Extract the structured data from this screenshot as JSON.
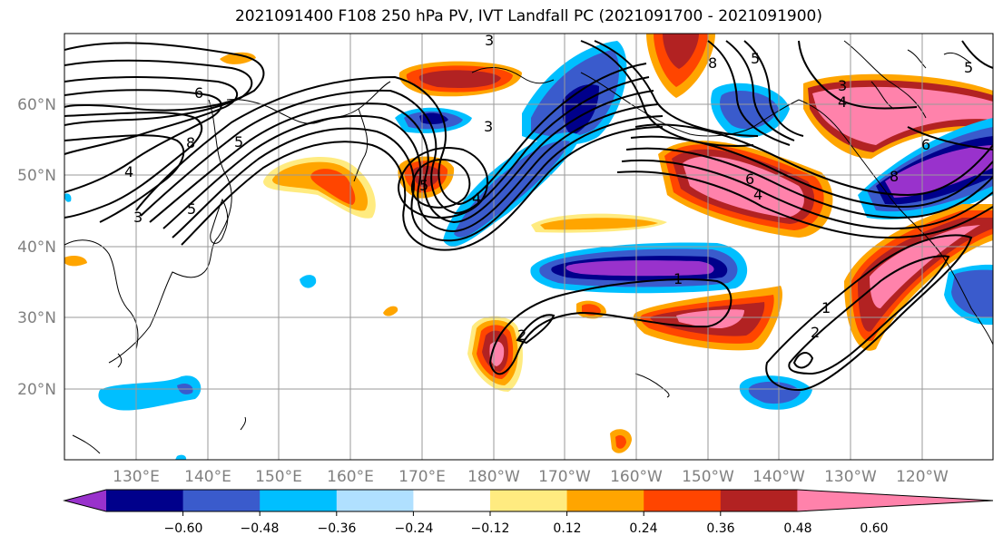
{
  "title": "2021091400 F108 250 hPa PV, IVT Landfall PC (2021091700 - 2021091900)",
  "axes": {
    "lat_labels": [
      "60°N",
      "50°N",
      "40°N",
      "30°N",
      "20°N"
    ],
    "lon_labels": [
      "130°E",
      "140°E",
      "150°E",
      "160°E",
      "170°E",
      "180°W",
      "170°W",
      "160°W",
      "150°W",
      "140°W",
      "130°W",
      "120°W"
    ]
  },
  "colorbar": {
    "ticks": [
      "−0.60",
      "−0.48",
      "−0.36",
      "−0.24",
      "−0.12",
      "0.12",
      "0.24",
      "0.36",
      "0.48",
      "0.60"
    ],
    "colors": [
      "#9932cc",
      "#00008b",
      "#3a5bcc",
      "#00bfff",
      "#b0e0ff",
      "#ffffff",
      "#ffeb80",
      "#ffa500",
      "#ff4500",
      "#b22222",
      "#ff82ab"
    ]
  },
  "contour_labels": [
    "6",
    "8",
    "5",
    "4",
    "3",
    "5",
    "4",
    "3",
    "3",
    "6",
    "4",
    "5",
    "8",
    "5",
    "3",
    "4",
    "6",
    "8",
    "1",
    "2",
    "1",
    "2",
    "5"
  ],
  "colors": {
    "purple": "#9932cc",
    "navy": "#00008b",
    "blue": "#3a5bcc",
    "cyan": "#00bfff",
    "lightblue": "#b0e0ff",
    "yellow": "#ffeb80",
    "orange": "#ffa500",
    "redorange": "#ff4500",
    "darkred": "#b22222",
    "pink": "#ff82ab"
  }
}
